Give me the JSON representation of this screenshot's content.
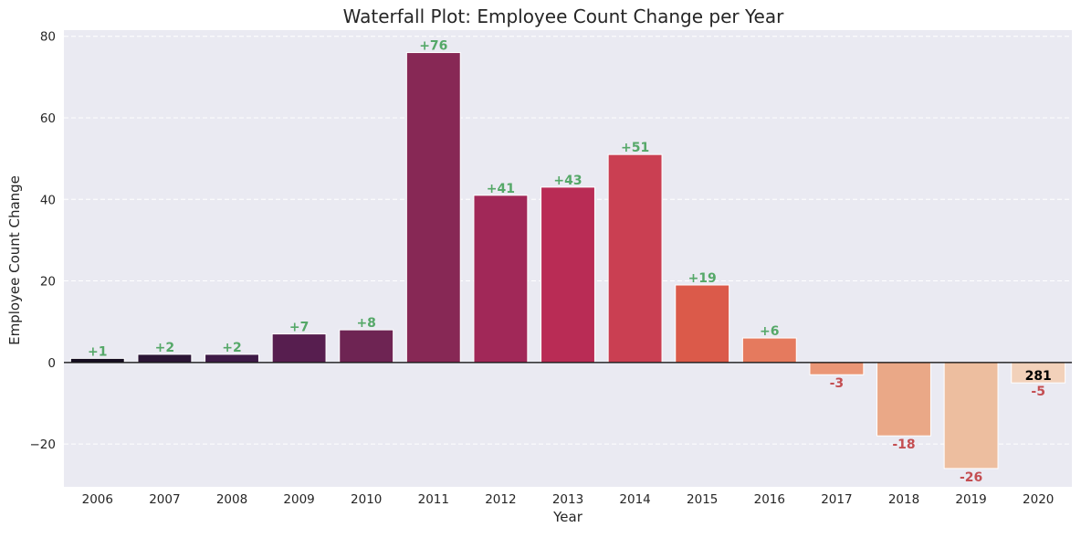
{
  "chart_data": {
    "type": "bar",
    "title": "Waterfall Plot: Employee Count Change per Year",
    "xlabel": "Year",
    "ylabel": "Employee Count Change",
    "categories": [
      "2006",
      "2007",
      "2008",
      "2009",
      "2010",
      "2011",
      "2012",
      "2013",
      "2014",
      "2015",
      "2016",
      "2017",
      "2018",
      "2019",
      "2020"
    ],
    "values": [
      1,
      2,
      2,
      7,
      8,
      76,
      41,
      43,
      51,
      19,
      6,
      -3,
      -18,
      -26,
      -5
    ],
    "value_labels": [
      "+1",
      "+2",
      "+2",
      "+7",
      "+8",
      "+76",
      "+41",
      "+43",
      "+51",
      "+19",
      "+6",
      "-3",
      "-18",
      "-26",
      "-5"
    ],
    "bar_colors": [
      "#150d20",
      "#2b1535",
      "#3e1a47",
      "#571e4f",
      "#6e2453",
      "#872855",
      "#a12858",
      "#b92c55",
      "#ca3f52",
      "#db5a4a",
      "#e57a5e",
      "#ea9676",
      "#eaa887",
      "#edbe9f",
      "#f2d1ba"
    ],
    "total_label": "281",
    "ylim": [
      -30.5,
      81.5
    ],
    "yticks": [
      -20,
      0,
      20,
      40,
      60,
      80
    ],
    "ytick_labels": [
      "−20",
      "0",
      "20",
      "40",
      "60",
      "80"
    ],
    "grid": true,
    "grid_axis": "y",
    "grid_style": "dashed",
    "zero_line": true,
    "colors": {
      "background": "#eaeaf2",
      "grid": "#ffffff",
      "positive_label": "#55a868",
      "negative_label": "#c44e52",
      "total_label": "#000000",
      "zero_line": "#000000"
    }
  }
}
